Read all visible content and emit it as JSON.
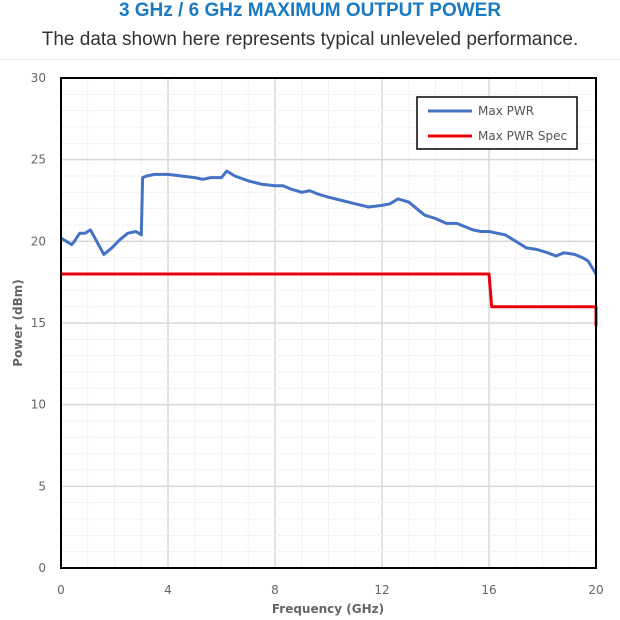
{
  "header": {
    "title": "3 GHz / 6 GHz MAXIMUM OUTPUT POWER",
    "subtitle": "The data shown here represents typical unleveled performance."
  },
  "colors": {
    "title": "#1a7bc4",
    "max_pwr": "#4472c4",
    "max_pwr_spec": "#e8000b"
  },
  "chart_data": {
    "type": "line",
    "title": "3 GHz / 6 GHz MAXIMUM OUTPUT POWER",
    "subtitle": "The data shown here represents typical unleveled performance.",
    "xlabel": "Frequency (GHz)",
    "ylabel": "Power (dBm)",
    "xlim": [
      0,
      20
    ],
    "ylim": [
      0,
      30
    ],
    "xticks": [
      0,
      4,
      8,
      12,
      16,
      20
    ],
    "yticks": [
      0,
      5,
      10,
      15,
      20,
      25,
      30
    ],
    "grid": true,
    "legend_position": "upper right",
    "series": [
      {
        "name": "Max PWR",
        "color": "#4472c4",
        "x": [
          0,
          0.2,
          0.4,
          0.5,
          0.7,
          0.9,
          1.1,
          1.3,
          1.6,
          1.9,
          2.2,
          2.5,
          2.8,
          3.0,
          3.05,
          3.2,
          3.5,
          3.7,
          4.0,
          4.5,
          5.0,
          5.3,
          5.6,
          6.0,
          6.2,
          6.5,
          7.0,
          7.5,
          8.0,
          8.3,
          8.6,
          9.0,
          9.3,
          9.6,
          10.0,
          10.5,
          11.0,
          11.5,
          12.0,
          12.3,
          12.6,
          13.0,
          13.3,
          13.6,
          14.0,
          14.4,
          14.8,
          15.1,
          15.4,
          15.7,
          16.0,
          16.3,
          16.6,
          17.0,
          17.4,
          17.8,
          18.2,
          18.5,
          18.8,
          19.2,
          19.5,
          19.7,
          20.0
        ],
        "values": [
          20.2,
          20.0,
          19.8,
          20.0,
          20.5,
          20.5,
          20.7,
          20.1,
          19.2,
          19.6,
          20.1,
          20.5,
          20.6,
          20.4,
          23.9,
          24.0,
          24.1,
          24.1,
          24.1,
          24.0,
          23.9,
          23.8,
          23.9,
          23.9,
          24.3,
          24.0,
          23.7,
          23.5,
          23.4,
          23.4,
          23.2,
          23.0,
          23.1,
          22.9,
          22.7,
          22.5,
          22.3,
          22.1,
          22.2,
          22.3,
          22.6,
          22.4,
          22.0,
          21.6,
          21.4,
          21.1,
          21.1,
          20.9,
          20.7,
          20.6,
          20.6,
          20.5,
          20.4,
          20.0,
          19.6,
          19.5,
          19.3,
          19.1,
          19.3,
          19.2,
          19.0,
          18.8,
          18.0
        ]
      },
      {
        "name": "Max PWR Spec",
        "color": "#e8000b",
        "x": [
          0,
          16.0,
          16.1,
          20.0,
          20.0
        ],
        "values": [
          18,
          18,
          16,
          16,
          14.8
        ]
      }
    ]
  },
  "legend": {
    "items": [
      {
        "label": "Max PWR"
      },
      {
        "label": "Max PWR Spec"
      }
    ]
  }
}
